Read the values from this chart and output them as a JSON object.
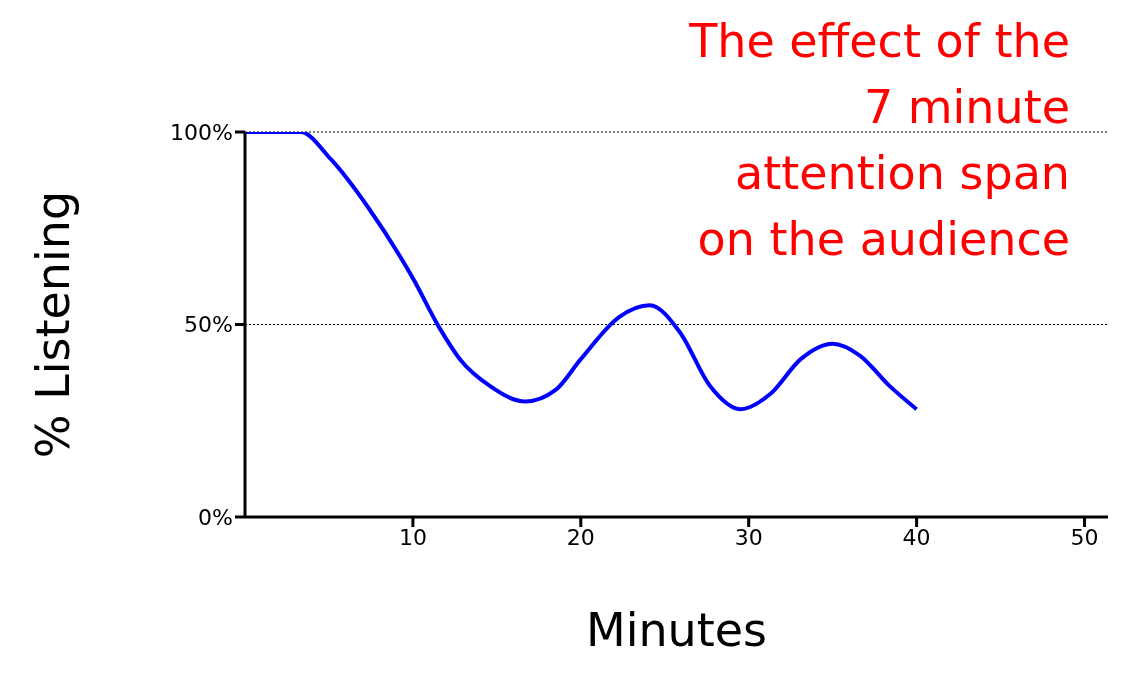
{
  "chart_data": {
    "type": "line",
    "title": "The effect of the 7 minute attention span on the audience",
    "xlabel": "Minutes",
    "ylabel": "% Listening",
    "x": [
      0,
      3.3,
      5.1,
      7.4,
      10,
      11.6,
      12.8,
      14.6,
      16.7,
      18.5,
      20,
      22.3,
      24.1,
      25.9,
      27.7,
      29.5,
      31.3,
      33.1,
      35,
      36.6,
      38.4,
      40
    ],
    "series": [
      {
        "color": "#0000ff",
        "values": [
          100,
          100,
          93,
          80,
          62,
          49,
          41,
          34,
          30,
          33,
          41,
          52,
          55,
          48,
          34,
          28,
          32,
          41,
          45,
          42,
          34,
          28
        ]
      }
    ],
    "xlim": [
      0,
      51.4
    ],
    "xticks": [
      10,
      20,
      30,
      40,
      50
    ],
    "ylim": [
      0,
      100
    ],
    "yticks": [
      {
        "value": 0,
        "label": "0%"
      },
      {
        "value": 50,
        "label": "50%"
      },
      {
        "value": 100,
        "label": "100%"
      }
    ],
    "grid": "y"
  }
}
